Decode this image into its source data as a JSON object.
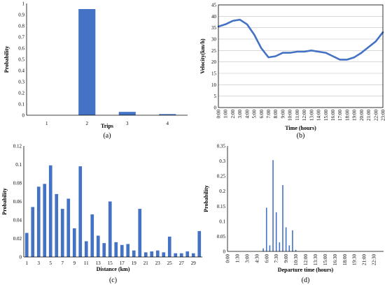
{
  "colors": {
    "series": "#4472C4",
    "axis": "#000000",
    "grid": "#bfbfbf"
  },
  "chart_data": [
    {
      "type": "bar",
      "caption": "(a)",
      "xlabel": "Trips",
      "ylabel": "Probability",
      "categories": [
        "1",
        "2",
        "3",
        "4"
      ],
      "values": [
        0.0,
        0.95,
        0.03,
        0.01
      ],
      "ylim": [
        0,
        1
      ],
      "yticks": [
        "0",
        "0.1",
        "0.2",
        "0.3",
        "0.4",
        "0.5",
        "0.6",
        "0.7",
        "0.8",
        "0.9",
        "1"
      ],
      "grid": false
    },
    {
      "type": "line",
      "caption": "(b)",
      "xlabel": "Time (hours)",
      "ylabel": "Velocity(km/h)",
      "categories": [
        "0:00",
        "1:00",
        "2:00",
        "3:00",
        "4:00",
        "5:00",
        "6:00",
        "7:00",
        "8:00",
        "9:00",
        "10:00",
        "11:00",
        "12:00",
        "13:00",
        "14:00",
        "15:00",
        "16:00",
        "17:00",
        "18:00",
        "19:00",
        "20:00",
        "21:00",
        "22:00",
        "23:00"
      ],
      "values": [
        35.5,
        36.5,
        38.0,
        38.5,
        36.5,
        32.0,
        26.0,
        22.0,
        22.5,
        24.0,
        24.0,
        24.5,
        24.5,
        25.0,
        24.5,
        24.0,
        22.5,
        21.0,
        21.0,
        22.0,
        24.0,
        26.5,
        29.0,
        33.0
      ],
      "ylim": [
        0,
        45
      ],
      "yticks": [
        "0",
        "5",
        "10",
        "15",
        "20",
        "25",
        "30",
        "35",
        "40",
        "45"
      ],
      "grid": true
    },
    {
      "type": "bar",
      "caption": "(c)",
      "xlabel": "Distance (km)",
      "ylabel": "Probability",
      "x": [
        1,
        2,
        3,
        4,
        5,
        6,
        7,
        8,
        9,
        10,
        11,
        12,
        13,
        14,
        15,
        16,
        17,
        18,
        19,
        20,
        21,
        22,
        23,
        24,
        25,
        26,
        27,
        28,
        29,
        30
      ],
      "values": [
        0.026,
        0.054,
        0.076,
        0.079,
        0.099,
        0.068,
        0.052,
        0.063,
        0.031,
        0.098,
        0.017,
        0.046,
        0.023,
        0.015,
        0.06,
        0.016,
        0.013,
        0.014,
        0.007,
        0.052,
        0.005,
        0.006,
        0.007,
        0.005,
        0.022,
        0.004,
        0.004,
        0.006,
        0.004,
        0.028
      ],
      "xticks": [
        "1",
        "3",
        "5",
        "7",
        "9",
        "11",
        "13",
        "15",
        "17",
        "19",
        "21",
        "23",
        "25",
        "27",
        "29"
      ],
      "ylim": [
        0,
        0.12
      ],
      "yticks": [
        "0",
        "0.02",
        "0.04",
        "0.06",
        "0.08",
        "0.1",
        "0.12"
      ],
      "grid": false
    },
    {
      "type": "bar",
      "caption": "(d)",
      "xlabel": "Departure time (hours)",
      "ylabel": "Probability",
      "x": [
        "5:30",
        "6:00",
        "6:30",
        "7:00",
        "7:30",
        "8:00",
        "8:30",
        "9:00",
        "9:30",
        "10:00",
        "10:30"
      ],
      "values": [
        0.01,
        0.145,
        0.02,
        0.303,
        0.13,
        0.03,
        0.22,
        0.08,
        0.02,
        0.07,
        0.005
      ],
      "xticks": [
        "0:00",
        "1:30",
        "3:00",
        "4:30",
        "6:00",
        "7:30",
        "9:00",
        "10:30",
        "12:00",
        "13:30",
        "15:00",
        "16:30",
        "18:00",
        "19:30",
        "21:00",
        "22:30"
      ],
      "ylim": [
        0,
        0.35
      ],
      "yticks": [
        "0",
        "0.05",
        "0.1",
        "0.15",
        "0.2",
        "0.25",
        "0.3",
        "0.35"
      ],
      "grid": false
    }
  ]
}
